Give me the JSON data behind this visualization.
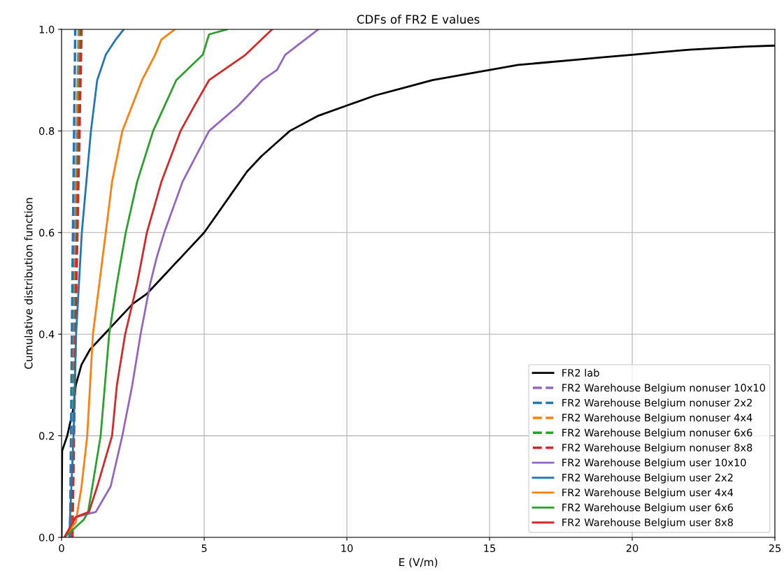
{
  "chart_data": {
    "type": "line",
    "title": "CDFs of FR2 E values",
    "xlabel": "E (V/m)",
    "ylabel": "Cumulative distribution function",
    "xlim": [
      0,
      25
    ],
    "ylim": [
      0,
      1
    ],
    "xticks": [
      0,
      5,
      10,
      15,
      20,
      25
    ],
    "yticks": [
      {
        "value": 0,
        "label": "0.0"
      },
      {
        "value": 0.2,
        "label": "0.2"
      },
      {
        "value": 0.4,
        "label": "0.4"
      },
      {
        "value": 0.6,
        "label": "0.6"
      },
      {
        "value": 0.8,
        "label": "0.8"
      },
      {
        "value": 1,
        "label": "1.0"
      }
    ],
    "grid": true,
    "legend": "bottom right",
    "marker": "none",
    "series": [
      {
        "name": "FR2 lab",
        "color": "#000000",
        "line_style": "solid",
        "x": [
          0,
          0.02,
          0.2,
          0.4,
          0.5,
          0.7,
          1.0,
          1.5,
          2,
          2.5,
          3,
          3.5,
          4,
          4.5,
          5,
          5.5,
          6,
          6.5,
          7,
          7.5,
          8,
          9,
          10,
          11,
          12,
          13,
          14,
          15,
          16,
          17,
          18,
          19,
          20,
          21,
          22,
          23,
          24,
          25
        ],
        "values": [
          0,
          0.17,
          0.2,
          0.25,
          0.3,
          0.34,
          0.37,
          0.4,
          0.43,
          0.46,
          0.48,
          0.51,
          0.54,
          0.57,
          0.6,
          0.64,
          0.68,
          0.72,
          0.75,
          0.775,
          0.8,
          0.83,
          0.85,
          0.87,
          0.885,
          0.9,
          0.91,
          0.92,
          0.93,
          0.935,
          0.94,
          0.945,
          0.95,
          0.955,
          0.96,
          0.963,
          0.966,
          0.968
        ]
      },
      {
        "name": "FR2 Warehouse Belgium nonuser 10x10",
        "color": "#9467bd",
        "line_style": "dashed",
        "x": [
          0.33,
          0.45,
          0.6
        ],
        "values": [
          0,
          0.5,
          1
        ]
      },
      {
        "name": "FR2 Warehouse Belgium nonuser 2x2",
        "color": "#1f77b4",
        "line_style": "dashed",
        "x": [
          0.3,
          0.38,
          0.48
        ],
        "values": [
          0,
          0.5,
          1
        ]
      },
      {
        "name": "FR2 Warehouse Belgium nonuser 4x4",
        "color": "#ff7f0e",
        "line_style": "dashed",
        "x": [
          0.35,
          0.48,
          0.62
        ],
        "values": [
          0,
          0.5,
          1
        ]
      },
      {
        "name": "FR2 Warehouse Belgium nonuser 6x6",
        "color": "#2ca02c",
        "line_style": "dashed",
        "x": [
          0.36,
          0.5,
          0.65
        ],
        "values": [
          0,
          0.5,
          1
        ]
      },
      {
        "name": "FR2 Warehouse Belgium nonuser 8x8",
        "color": "#d62728",
        "line_style": "dashed",
        "x": [
          0.38,
          0.52,
          0.7
        ],
        "values": [
          0,
          0.5,
          1
        ]
      },
      {
        "name": "FR2 Warehouse Belgium user 10x10",
        "color": "#9467bd",
        "line_style": "solid",
        "x": [
          0.1,
          0.5,
          1.2,
          1.72,
          2.13,
          2.48,
          2.77,
          3.11,
          3.33,
          3.6,
          4.24,
          5.17,
          6.2,
          7.03,
          7.55,
          7.84,
          9.0
        ],
        "values": [
          0,
          0.04,
          0.05,
          0.1,
          0.2,
          0.3,
          0.4,
          0.5,
          0.55,
          0.6,
          0.7,
          0.8,
          0.85,
          0.9,
          0.92,
          0.95,
          1
        ]
      },
      {
        "name": "FR2 Warehouse Belgium user 2x2",
        "color": "#1f77b4",
        "line_style": "solid",
        "x": [
          0.27,
          0.42,
          0.51,
          0.71,
          1.03,
          1.25,
          1.55,
          1.9,
          2.18
        ],
        "values": [
          0,
          0.2,
          0.4,
          0.6,
          0.8,
          0.9,
          0.95,
          0.98,
          1
        ]
      },
      {
        "name": "FR2 Warehouse Belgium user 4x4",
        "color": "#ff7f0e",
        "line_style": "solid",
        "x": [
          0.1,
          0.5,
          0.7,
          0.9,
          1.1,
          1.55,
          1.77,
          2.13,
          2.82,
          3.28,
          3.5,
          3.97
        ],
        "values": [
          0,
          0.03,
          0.1,
          0.2,
          0.4,
          0.6,
          0.7,
          0.8,
          0.9,
          0.95,
          0.98,
          1
        ]
      },
      {
        "name": "FR2 Warehouse Belgium user 6x6",
        "color": "#2ca02c",
        "line_style": "solid",
        "x": [
          0.1,
          0.3,
          0.78,
          0.93,
          1.08,
          1.37,
          1.67,
          1.94,
          2.25,
          2.65,
          3.21,
          4.02,
          4.95,
          5.17,
          5.8
        ],
        "values": [
          0,
          0.01,
          0.035,
          0.05,
          0.1,
          0.2,
          0.4,
          0.5,
          0.6,
          0.7,
          0.8,
          0.9,
          0.95,
          0.99,
          1
        ]
      },
      {
        "name": "FR2 Warehouse Belgium user 8x8",
        "color": "#d62728",
        "line_style": "solid",
        "x": [
          0.1,
          0.5,
          0.96,
          1.25,
          1.77,
          1.94,
          2.23,
          2.65,
          2.99,
          3.5,
          4.17,
          4.66,
          5.17,
          6.45,
          7.38
        ],
        "values": [
          0,
          0.04,
          0.05,
          0.1,
          0.2,
          0.3,
          0.4,
          0.5,
          0.6,
          0.7,
          0.8,
          0.85,
          0.9,
          0.95,
          1
        ]
      }
    ]
  }
}
